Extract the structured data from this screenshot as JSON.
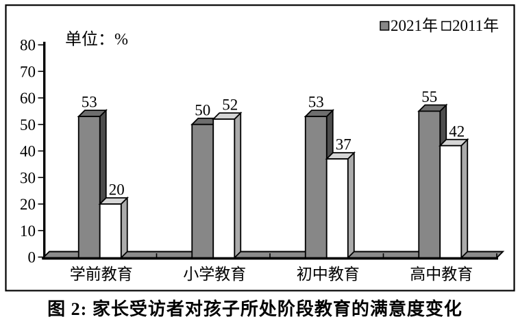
{
  "figure": {
    "caption": "图 2: 家长受访者对孩子所处阶段教育的满意度变化",
    "unit_label": "单位：%"
  },
  "chart_data": {
    "type": "bar",
    "style": "3d-grouped",
    "title": "",
    "xlabel": "",
    "ylabel": "单位：%",
    "categories": [
      "学前教育",
      "小学教育",
      "初中教育",
      "高中教育"
    ],
    "series": [
      {
        "name": "2021年",
        "values": [
          53,
          50,
          53,
          55
        ],
        "front_color": "#878787",
        "side_color": "#4d4d4d",
        "top_color": "#6e6e6e"
      },
      {
        "name": "2011年",
        "values": [
          20,
          52,
          37,
          42
        ],
        "front_color": "#ffffff",
        "side_color": "#ababab",
        "top_color": "#d6d6d6"
      }
    ],
    "ylim": [
      0,
      80
    ],
    "y_tick_step": 10,
    "y_ticks": [
      0,
      10,
      20,
      30,
      40,
      50,
      60,
      70,
      80
    ],
    "data_labels": true,
    "grid": false,
    "legend_position": "top-right"
  },
  "colors": {
    "axis": "#000000",
    "outline": "#000000",
    "floor": "#8c8c8c",
    "background": "#ffffff",
    "border": "#000000"
  }
}
